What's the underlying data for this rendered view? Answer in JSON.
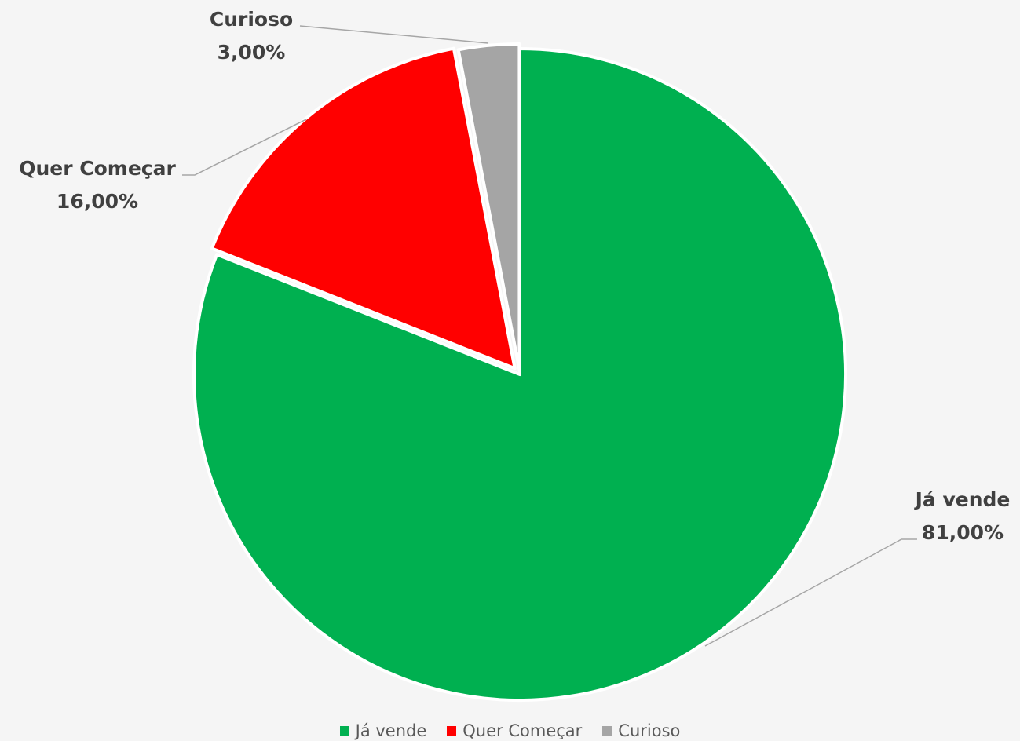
{
  "chart_data": {
    "type": "pie",
    "title": "",
    "slices": [
      {
        "label": "Já vende",
        "value": 81.0,
        "display": "81,00%",
        "color": "#00b050"
      },
      {
        "label": "Quer Começar",
        "value": 16.0,
        "display": "16,00%",
        "color": "#ff0000"
      },
      {
        "label": "Curioso",
        "value": 3.0,
        "display": "3,00%",
        "color": "#a5a5a5"
      }
    ],
    "start_angle": "12 o'clock",
    "direction": "clockwise",
    "data_labels": "outside with leader lines",
    "legend_position": "bottom"
  },
  "legend": {
    "items": [
      {
        "label": "Já vende",
        "color": "#00b050"
      },
      {
        "label": "Quer Começar",
        "color": "#ff0000"
      },
      {
        "label": "Curioso",
        "color": "#a5a5a5"
      }
    ]
  }
}
